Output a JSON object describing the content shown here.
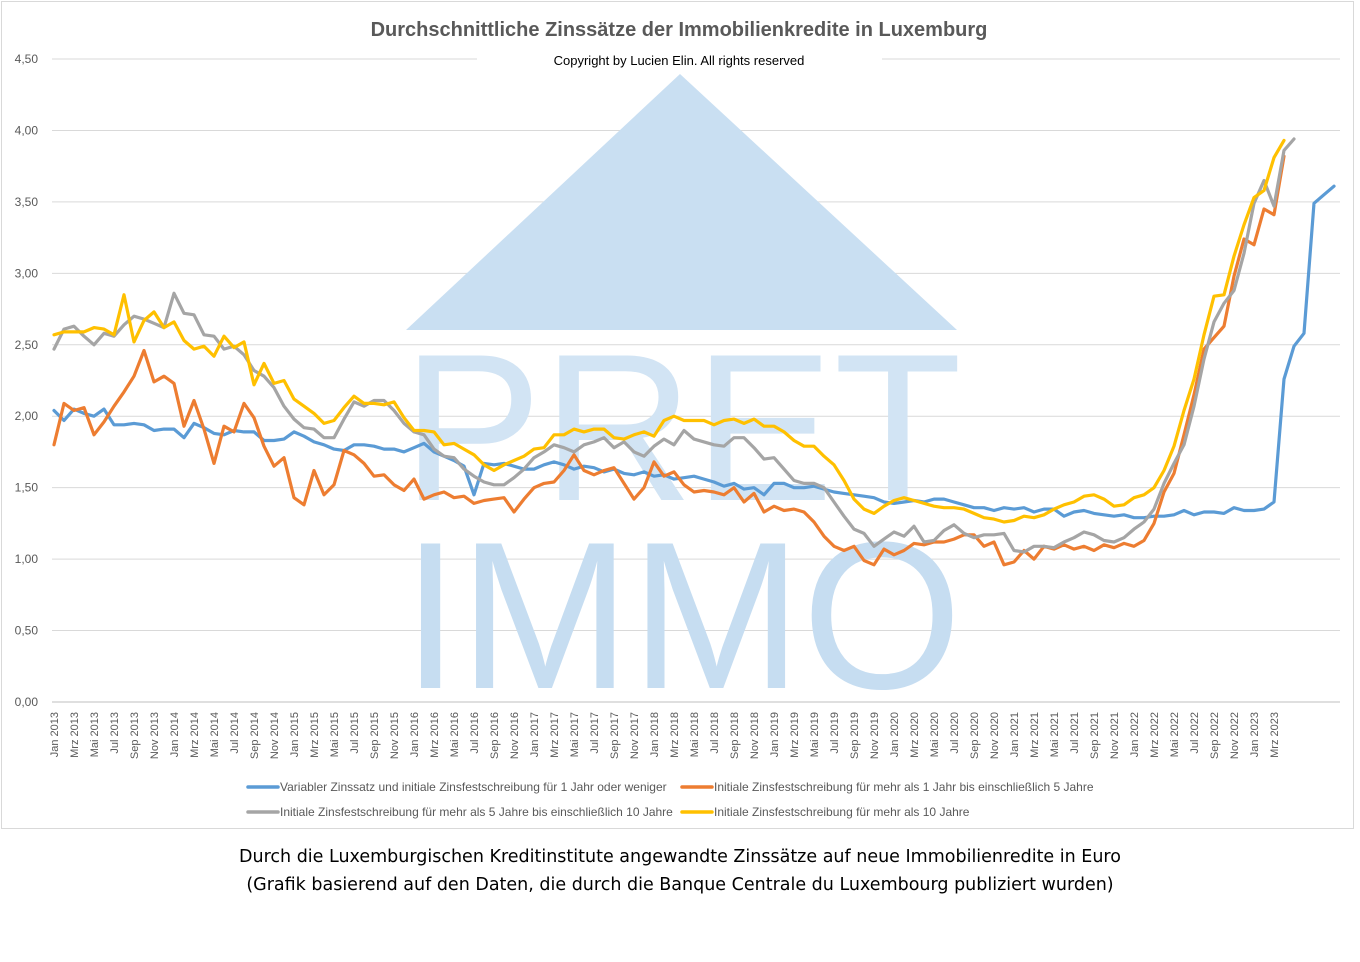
{
  "chart_data": {
    "type": "line",
    "title": "Durchschnittliche Zinssätze der Immobilienkredite in Luxemburg",
    "subtitle": "Copyright by Lucien Elin. All rights reserved",
    "watermark": [
      "PRET",
      "IMMO"
    ],
    "ylim": [
      0,
      4.5
    ],
    "yticks": [
      "0,00",
      "0,50",
      "1,00",
      "1,50",
      "2,00",
      "2,50",
      "3,00",
      "3,50",
      "4,00",
      "4,50"
    ],
    "xticks": [
      "Jan 2013",
      "Mrz 2013",
      "Mai 2013",
      "Jul 2013",
      "Sep 2013",
      "Nov 2013",
      "Jan 2014",
      "Mrz 2014",
      "Mai 2014",
      "Jul 2014",
      "Sep 2014",
      "Nov 2014",
      "Jan 2015",
      "Mrz 2015",
      "Mai 2015",
      "Jul 2015",
      "Sep 2015",
      "Nov 2015",
      "Jan 2016",
      "Mrz 2016",
      "Mai 2016",
      "Jul 2016",
      "Sep 2016",
      "Nov 2016",
      "Jan 2017",
      "Mrz 2017",
      "Mai 2017",
      "Jul 2017",
      "Sep 2017",
      "Nov 2017",
      "Jan 2018",
      "Mrz 2018",
      "Mai 2018",
      "Jul 2018",
      "Sep 2018",
      "Nov 2018",
      "Jan 2019",
      "Mrz 2019",
      "Mai 2019",
      "Jul 2019",
      "Sep 2019",
      "Nov 2019",
      "Jan 2020",
      "Mrz 2020",
      "Mai 2020",
      "Jul 2020",
      "Sep 2020",
      "Nov 2020",
      "Jan 2021",
      "Mrz 2021",
      "Mai 2021",
      "Jul 2021",
      "Sep 2021",
      "Nov 2021",
      "Jan 2022",
      "Mrz 2022",
      "Mai 2022",
      "Jul 2022",
      "Sep 2022",
      "Nov 2022",
      "Jan 2023",
      "Mrz 2023"
    ],
    "xlabel": "",
    "ylabel": "",
    "grid": true,
    "legend_position": "bottom",
    "series": [
      {
        "name": "Variabler Zinssatz und initiale Zinsfestschreibung für 1 Jahr oder weniger",
        "color": "#5b9bd5",
        "values": [
          2.04,
          1.97,
          2.05,
          2.02,
          2.0,
          2.05,
          1.94,
          1.94,
          1.95,
          1.94,
          1.9,
          1.91,
          1.91,
          1.85,
          1.95,
          1.92,
          1.88,
          1.87,
          1.9,
          1.89,
          1.89,
          1.83,
          1.83,
          1.84,
          1.89,
          1.86,
          1.82,
          1.8,
          1.77,
          1.76,
          1.8,
          1.8,
          1.79,
          1.77,
          1.77,
          1.75,
          1.78,
          1.81,
          1.75,
          1.72,
          1.69,
          1.65,
          1.45,
          1.67,
          1.66,
          1.67,
          1.65,
          1.63,
          1.63,
          1.66,
          1.68,
          1.66,
          1.63,
          1.65,
          1.64,
          1.61,
          1.63,
          1.6,
          1.59,
          1.61,
          1.58,
          1.59,
          1.56,
          1.57,
          1.58,
          1.56,
          1.54,
          1.51,
          1.53,
          1.49,
          1.5,
          1.45,
          1.53,
          1.53,
          1.5,
          1.5,
          1.51,
          1.49,
          1.47,
          1.46,
          1.45,
          1.44,
          1.43,
          1.4,
          1.39,
          1.4,
          1.41,
          1.4,
          1.42,
          1.42,
          1.4,
          1.38,
          1.36,
          1.36,
          1.34,
          1.36,
          1.35,
          1.36,
          1.33,
          1.35,
          1.35,
          1.3,
          1.33,
          1.34,
          1.32,
          1.31,
          1.3,
          1.31,
          1.29,
          1.29,
          1.3,
          1.3,
          1.31,
          1.34,
          1.31,
          1.33,
          1.33,
          1.32,
          1.36,
          1.34,
          1.34,
          1.35,
          1.4,
          2.26,
          2.49,
          2.58,
          3.49,
          3.55,
          3.61
        ]
      },
      {
        "name": "Initiale Zinsfestschreibung für mehr als 1 Jahr bis einschließlich 5 Jahre",
        "color": "#ed7d31",
        "values": [
          1.8,
          2.09,
          2.04,
          2.06,
          1.87,
          1.96,
          2.07,
          2.17,
          2.28,
          2.46,
          2.24,
          2.28,
          2.23,
          1.93,
          2.11,
          1.91,
          1.67,
          1.93,
          1.89,
          2.09,
          1.99,
          1.79,
          1.65,
          1.71,
          1.43,
          1.38,
          1.62,
          1.45,
          1.52,
          1.76,
          1.73,
          1.67,
          1.58,
          1.59,
          1.52,
          1.48,
          1.56,
          1.42,
          1.45,
          1.47,
          1.43,
          1.44,
          1.39,
          1.41,
          1.42,
          1.43,
          1.33,
          1.42,
          1.5,
          1.53,
          1.54,
          1.62,
          1.73,
          1.62,
          1.59,
          1.62,
          1.64,
          1.53,
          1.42,
          1.5,
          1.68,
          1.58,
          1.61,
          1.52,
          1.47,
          1.48,
          1.47,
          1.45,
          1.5,
          1.4,
          1.46,
          1.33,
          1.37,
          1.34,
          1.35,
          1.33,
          1.26,
          1.16,
          1.09,
          1.06,
          1.09,
          0.99,
          0.96,
          1.07,
          1.03,
          1.06,
          1.11,
          1.1,
          1.12,
          1.12,
          1.14,
          1.17,
          1.17,
          1.09,
          1.12,
          0.96,
          0.98,
          1.06,
          1.0,
          1.09,
          1.07,
          1.1,
          1.07,
          1.09,
          1.06,
          1.1,
          1.08,
          1.11,
          1.09,
          1.13,
          1.25,
          1.47,
          1.6,
          1.87,
          2.15,
          2.47,
          2.55,
          2.63,
          2.98,
          3.24,
          3.2,
          3.45,
          3.41,
          3.82
        ]
      },
      {
        "name": "Initiale Zinsfestschreibung für mehr als 5 Jahre bis einschließlich 10 Jahre",
        "color": "#a5a5a5",
        "values": [
          2.47,
          2.61,
          2.63,
          2.56,
          2.5,
          2.58,
          2.56,
          2.64,
          2.7,
          2.68,
          2.65,
          2.62,
          2.86,
          2.72,
          2.71,
          2.57,
          2.56,
          2.47,
          2.49,
          2.43,
          2.32,
          2.28,
          2.2,
          2.07,
          1.98,
          1.92,
          1.91,
          1.85,
          1.85,
          1.98,
          2.1,
          2.07,
          2.11,
          2.11,
          2.04,
          1.95,
          1.89,
          1.87,
          1.77,
          1.72,
          1.71,
          1.63,
          1.58,
          1.54,
          1.52,
          1.52,
          1.57,
          1.63,
          1.71,
          1.75,
          1.8,
          1.78,
          1.75,
          1.8,
          1.82,
          1.85,
          1.78,
          1.82,
          1.75,
          1.72,
          1.79,
          1.84,
          1.8,
          1.9,
          1.84,
          1.82,
          1.8,
          1.79,
          1.85,
          1.85,
          1.78,
          1.7,
          1.71,
          1.63,
          1.55,
          1.53,
          1.53,
          1.5,
          1.4,
          1.3,
          1.21,
          1.18,
          1.09,
          1.14,
          1.19,
          1.16,
          1.23,
          1.12,
          1.13,
          1.2,
          1.24,
          1.18,
          1.15,
          1.17,
          1.17,
          1.18,
          1.06,
          1.05,
          1.09,
          1.09,
          1.08,
          1.12,
          1.15,
          1.19,
          1.17,
          1.13,
          1.12,
          1.15,
          1.21,
          1.26,
          1.35,
          1.53,
          1.67,
          1.8,
          2.07,
          2.4,
          2.66,
          2.79,
          2.88,
          3.14,
          3.49,
          3.65,
          3.47,
          3.86,
          3.94
        ]
      },
      {
        "name": "Initiale Zinsfestschreibung für mehr als 10 Jahre",
        "color": "#ffc000",
        "values": [
          2.57,
          2.59,
          2.59,
          2.59,
          2.62,
          2.61,
          2.57,
          2.85,
          2.52,
          2.67,
          2.73,
          2.62,
          2.66,
          2.53,
          2.47,
          2.49,
          2.42,
          2.56,
          2.48,
          2.52,
          2.22,
          2.37,
          2.23,
          2.25,
          2.12,
          2.07,
          2.02,
          1.95,
          1.97,
          2.06,
          2.14,
          2.09,
          2.09,
          2.08,
          2.1,
          1.99,
          1.9,
          1.9,
          1.89,
          1.8,
          1.81,
          1.77,
          1.73,
          1.66,
          1.62,
          1.66,
          1.69,
          1.72,
          1.77,
          1.78,
          1.87,
          1.87,
          1.91,
          1.89,
          1.91,
          1.91,
          1.85,
          1.84,
          1.87,
          1.89,
          1.86,
          1.97,
          2.0,
          1.97,
          1.97,
          1.97,
          1.94,
          1.97,
          1.98,
          1.95,
          1.98,
          1.93,
          1.93,
          1.89,
          1.83,
          1.79,
          1.79,
          1.72,
          1.66,
          1.55,
          1.42,
          1.35,
          1.32,
          1.37,
          1.41,
          1.43,
          1.41,
          1.39,
          1.37,
          1.36,
          1.36,
          1.35,
          1.32,
          1.29,
          1.28,
          1.26,
          1.27,
          1.3,
          1.29,
          1.31,
          1.35,
          1.38,
          1.4,
          1.44,
          1.45,
          1.42,
          1.37,
          1.38,
          1.43,
          1.45,
          1.5,
          1.62,
          1.79,
          2.04,
          2.26,
          2.57,
          2.84,
          2.85,
          3.12,
          3.34,
          3.53,
          3.58,
          3.81,
          3.93
        ]
      }
    ]
  },
  "caption": {
    "line1": "Durch die Luxemburgischen Kreditinstitute angewandte Zinssätze auf neue Immobilienredite in Euro",
    "line2": "(Grafik basierend auf den Daten, die durch die Banque Centrale du Luxembourg publiziert wurden)"
  }
}
